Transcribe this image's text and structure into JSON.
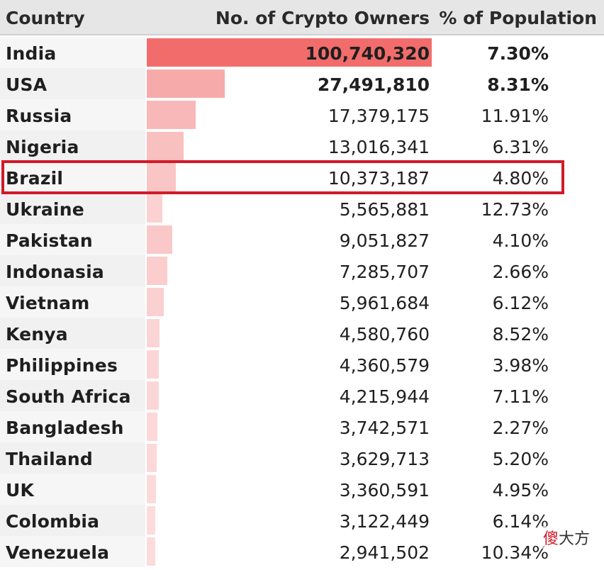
{
  "chart_data": {
    "type": "table",
    "columns": [
      "Country",
      "No. of Crypto Owners",
      "% of Population"
    ],
    "rows": [
      {
        "country": "India",
        "owners": "100,740,320",
        "pct": "7.30%",
        "owners_value": 100740320
      },
      {
        "country": "USA",
        "owners": "27,491,810",
        "pct": "8.31%",
        "owners_value": 27491810
      },
      {
        "country": "Russia",
        "owners": "17,379,175",
        "pct": "11.91%",
        "owners_value": 17379175
      },
      {
        "country": "Nigeria",
        "owners": "13,016,341",
        "pct": "6.31%",
        "owners_value": 13016341
      },
      {
        "country": "Brazil",
        "owners": "10,373,187",
        "pct": "4.80%",
        "owners_value": 10373187
      },
      {
        "country": "Ukraine",
        "owners": "5,565,881",
        "pct": "12.73%",
        "owners_value": 5565881
      },
      {
        "country": "Pakistan",
        "owners": "9,051,827",
        "pct": "4.10%",
        "owners_value": 9051827
      },
      {
        "country": "Indonasia",
        "owners": "7,285,707",
        "pct": "2.66%",
        "owners_value": 7285707
      },
      {
        "country": "Vietnam",
        "owners": "5,961,684",
        "pct": "6.12%",
        "owners_value": 5961684
      },
      {
        "country": "Kenya",
        "owners": "4,580,760",
        "pct": "8.52%",
        "owners_value": 4580760
      },
      {
        "country": "Philippines",
        "owners": "4,360,579",
        "pct": "3.98%",
        "owners_value": 4360579
      },
      {
        "country": "South Africa",
        "owners": "4,215,944",
        "pct": "7.11%",
        "owners_value": 4215944
      },
      {
        "country": "Bangladesh",
        "owners": "3,742,571",
        "pct": "2.27%",
        "owners_value": 3742571
      },
      {
        "country": "Thailand",
        "owners": "3,629,713",
        "pct": "5.20%",
        "owners_value": 3629713
      },
      {
        "country": "UK",
        "owners": "3,360,591",
        "pct": "4.95%",
        "owners_value": 3360591
      },
      {
        "country": "Colombia",
        "owners": "3,122,449",
        "pct": "6.14%",
        "owners_value": 3122449
      },
      {
        "country": "Venezuela",
        "owners": "2,941,502",
        "pct": "10.34%",
        "owners_value": 2941502
      }
    ],
    "highlighted_row": "Brazil",
    "bold_rows": [
      "India",
      "USA"
    ],
    "bar_color": "#f26c6c",
    "highlight_color": "#d11a2a"
  },
  "watermark": {
    "char_a": "傻",
    "char_b": "大方"
  }
}
